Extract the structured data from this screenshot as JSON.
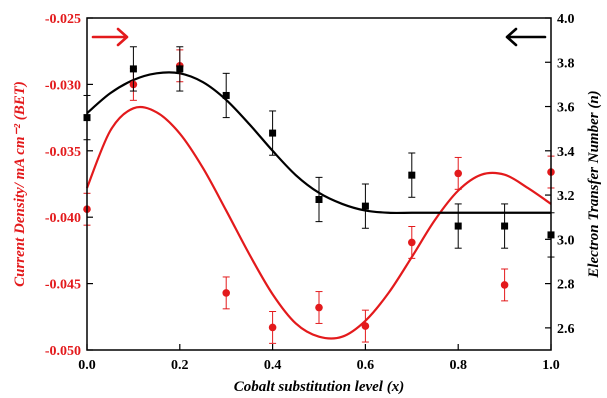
{
  "chart_data": {
    "type": "scatter",
    "xlabel": "Cobalt substitution level (x)",
    "ylabel_left": "Current Density/ mA cm⁻² (BET)",
    "ylabel_right": "Electron Transfer Number (n)",
    "xlim": [
      0.0,
      1.0
    ],
    "ylim_left": [
      -0.05,
      -0.025
    ],
    "ylim_right": [
      2.5,
      4.0
    ],
    "x_ticks": [
      "0.0",
      "0.2",
      "0.4",
      "0.6",
      "0.8",
      "1.0"
    ],
    "y_ticks_left": [
      "-0.050",
      "-0.045",
      "-0.040",
      "-0.035",
      "-0.030",
      "-0.025"
    ],
    "y_ticks_right": [
      "2.6",
      "2.8",
      "3.0",
      "3.2",
      "3.4",
      "3.6",
      "3.8",
      "4.0"
    ],
    "grid": false,
    "series": [
      {
        "axis": "left",
        "color": "#e31a1c",
        "marker": "circle",
        "x": [
          0.0,
          0.1,
          0.2,
          0.3,
          0.4,
          0.5,
          0.6,
          0.7,
          0.8,
          0.9,
          1.0
        ],
        "y": [
          -0.0394,
          -0.03,
          -0.0286,
          -0.0457,
          -0.0483,
          -0.0468,
          -0.0482,
          -0.0419,
          -0.0367,
          -0.0451,
          -0.0366
        ],
        "err": [
          0.0012,
          0.0012,
          0.0012,
          0.0012,
          0.0012,
          0.0012,
          0.0012,
          0.0012,
          0.0012,
          0.0012,
          0.0012
        ],
        "fit": {
          "x": [
            0.0,
            0.05,
            0.1,
            0.15,
            0.2,
            0.25,
            0.3,
            0.35,
            0.4,
            0.45,
            0.5,
            0.55,
            0.6,
            0.65,
            0.7,
            0.75,
            0.8,
            0.85,
            0.9,
            0.95,
            1.0
          ],
          "y": [
            -0.0378,
            -0.0335,
            -0.0318,
            -0.0321,
            -0.0337,
            -0.0363,
            -0.0395,
            -0.0428,
            -0.0458,
            -0.048,
            -0.049,
            -0.049,
            -0.0478,
            -0.0457,
            -0.043,
            -0.0402,
            -0.038,
            -0.0368,
            -0.0368,
            -0.0378,
            -0.039
          ]
        }
      },
      {
        "axis": "right",
        "color": "#000000",
        "marker": "square",
        "x": [
          0.0,
          0.1,
          0.2,
          0.3,
          0.4,
          0.5,
          0.6,
          0.7,
          0.8,
          0.9,
          1.0
        ],
        "y": [
          3.55,
          3.77,
          3.77,
          3.65,
          3.48,
          3.18,
          3.15,
          3.29,
          3.06,
          3.06,
          3.02
        ],
        "err": [
          0.1,
          0.1,
          0.1,
          0.1,
          0.1,
          0.1,
          0.1,
          0.1,
          0.1,
          0.1,
          0.1
        ],
        "fit": {
          "x": [
            0.0,
            0.05,
            0.1,
            0.15,
            0.2,
            0.25,
            0.3,
            0.35,
            0.4,
            0.45,
            0.5,
            0.55,
            0.6,
            0.65,
            0.7,
            0.75,
            0.8,
            0.85,
            0.9,
            0.95,
            1.0
          ],
          "y": [
            3.57,
            3.66,
            3.72,
            3.75,
            3.75,
            3.71,
            3.63,
            3.52,
            3.4,
            3.29,
            3.21,
            3.16,
            3.13,
            3.12,
            3.12,
            3.12,
            3.12,
            3.12,
            3.12,
            3.12,
            3.12
          ]
        }
      }
    ],
    "annotations": [
      {
        "type": "arrow",
        "direction": "right",
        "color": "#e31a1c",
        "position": "top-left"
      },
      {
        "type": "arrow",
        "direction": "left",
        "color": "#000000",
        "position": "top-right"
      }
    ]
  }
}
